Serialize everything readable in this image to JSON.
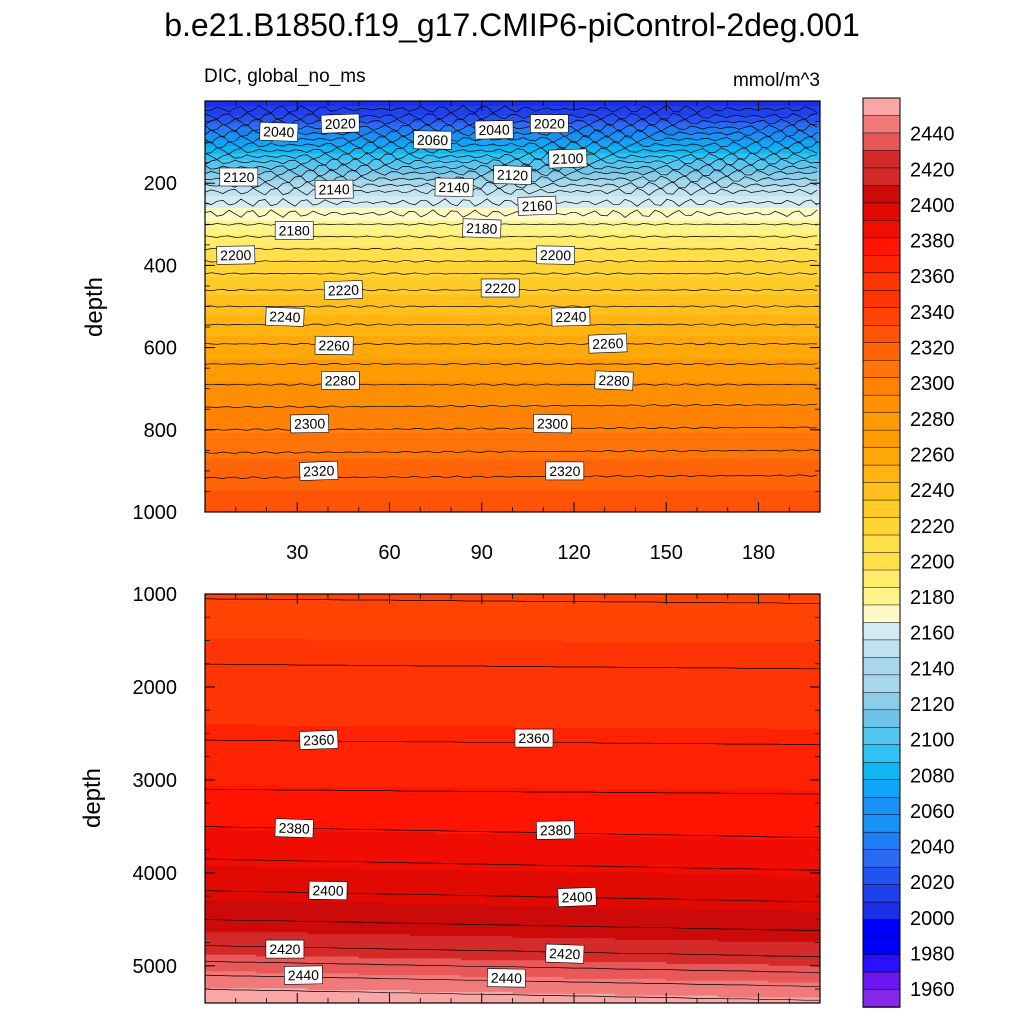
{
  "title": "b.e21.B1850.f19_g17.CMIP6-piControl-2deg.001",
  "variable_label": "DIC, global_no_ms",
  "units_label": "mmol/m^3",
  "colors": {
    "levels_low": [
      "#8528e8",
      "#6b18f0",
      "#2a10ff",
      "#0000ff",
      "#1b2ee8",
      "#2040ee",
      "#2452f0",
      "#2a6af2",
      "#1f7ef5",
      "#1a92f5",
      "#10a5f7",
      "#10b6f0",
      "#30c2f2",
      "#52c6f0",
      "#6ec3e8",
      "#8ccde9",
      "#a8d7ec",
      "#c0e2f0",
      "#d5ebf3"
    ],
    "levels_high": [
      "#fffac6",
      "#fff48a",
      "#ffec6a",
      "#ffe04a",
      "#ffd535",
      "#ffcb28",
      "#ffbf1c",
      "#ffb412",
      "#ffa80a",
      "#ff9c05",
      "#ff8f03",
      "#ff8205",
      "#ff7408",
      "#ff6408",
      "#ff5407",
      "#ff4405",
      "#ff3404",
      "#ff2203",
      "#ff1502",
      "#f00d02",
      "#e00a02",
      "#cc0a0a",
      "#d42a2a",
      "#e85858",
      "#f07a7a",
      "#f9a6a6"
    ]
  },
  "chart_data": [
    {
      "type": "contour",
      "panel": "upper",
      "x_ticks": [
        "30",
        "60",
        "90",
        "120",
        "150",
        "180"
      ],
      "xlim": [
        0,
        200
      ],
      "ylabel": "depth",
      "ylim": [
        1000,
        0
      ],
      "y_ticks": [
        "200",
        "400",
        "600",
        "800",
        "1000"
      ],
      "contour_labels": [
        {
          "text": "2020",
          "x": 44,
          "y": 55
        },
        {
          "text": "2020",
          "x": 112,
          "y": 55
        },
        {
          "text": "2040",
          "x": 24,
          "y": 75
        },
        {
          "text": "2040",
          "x": 94,
          "y": 70
        },
        {
          "text": "2060",
          "x": 74,
          "y": 95
        },
        {
          "text": "2100",
          "x": 118,
          "y": 140
        },
        {
          "text": "2120",
          "x": 11,
          "y": 185
        },
        {
          "text": "2120",
          "x": 100,
          "y": 180
        },
        {
          "text": "2140",
          "x": 42,
          "y": 215
        },
        {
          "text": "2140",
          "x": 81,
          "y": 210
        },
        {
          "text": "2160",
          "x": 108,
          "y": 255
        },
        {
          "text": "2180",
          "x": 29,
          "y": 315
        },
        {
          "text": "2180",
          "x": 90,
          "y": 310
        },
        {
          "text": "2200",
          "x": 10,
          "y": 375
        },
        {
          "text": "2200",
          "x": 114,
          "y": 375
        },
        {
          "text": "2220",
          "x": 45,
          "y": 460
        },
        {
          "text": "2220",
          "x": 96,
          "y": 455
        },
        {
          "text": "2240",
          "x": 26,
          "y": 525
        },
        {
          "text": "2240",
          "x": 119,
          "y": 525
        },
        {
          "text": "2260",
          "x": 42,
          "y": 595
        },
        {
          "text": "2260",
          "x": 131,
          "y": 590
        },
        {
          "text": "2280",
          "x": 44,
          "y": 680
        },
        {
          "text": "2280",
          "x": 133,
          "y": 680
        },
        {
          "text": "2300",
          "x": 34,
          "y": 785
        },
        {
          "text": "2300",
          "x": 113,
          "y": 785
        },
        {
          "text": "2320",
          "x": 37,
          "y": 900
        },
        {
          "text": "2320",
          "x": 117,
          "y": 900
        }
      ]
    },
    {
      "type": "contour",
      "panel": "lower",
      "xlim": [
        0,
        200
      ],
      "ylabel": "depth",
      "ylim": [
        5400,
        1000
      ],
      "y_ticks": [
        "1000",
        "2000",
        "3000",
        "4000",
        "5000"
      ],
      "contour_labels": [
        {
          "text": "2360",
          "x": 37,
          "y": 2570
        },
        {
          "text": "2360",
          "x": 107,
          "y": 2550
        },
        {
          "text": "2380",
          "x": 29,
          "y": 3520
        },
        {
          "text": "2380",
          "x": 114,
          "y": 3540
        },
        {
          "text": "2400",
          "x": 40,
          "y": 4190
        },
        {
          "text": "2400",
          "x": 121,
          "y": 4260
        },
        {
          "text": "2420",
          "x": 26,
          "y": 4820
        },
        {
          "text": "2420",
          "x": 117,
          "y": 4870
        },
        {
          "text": "2440",
          "x": 32,
          "y": 5100
        },
        {
          "text": "2440",
          "x": 98,
          "y": 5130
        }
      ]
    }
  ],
  "colorbar": {
    "labels": [
      "2440",
      "2420",
      "2400",
      "2380",
      "2360",
      "2340",
      "2320",
      "2300",
      "2280",
      "2260",
      "2240",
      "2220",
      "2200",
      "2180",
      "2160",
      "2140",
      "2120",
      "2100",
      "2080",
      "2060",
      "2040",
      "2020",
      "2000",
      "1980",
      "1960"
    ],
    "range": [
      1950,
      2460
    ]
  }
}
